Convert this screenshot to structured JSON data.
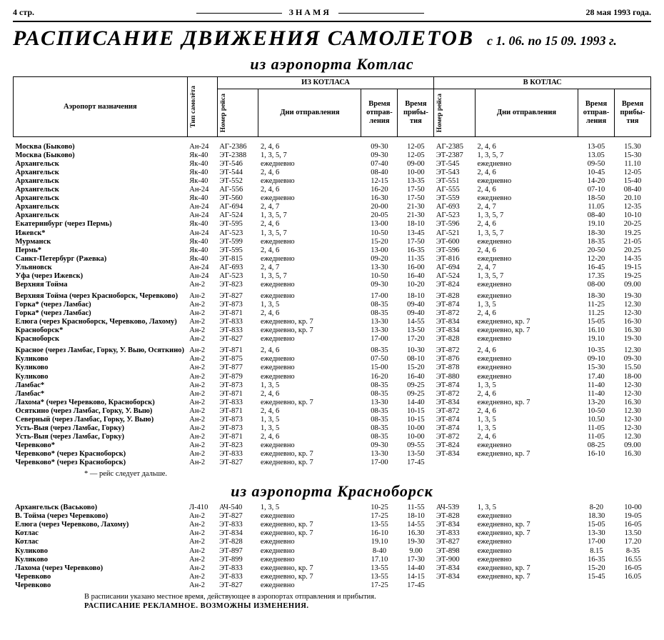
{
  "top": {
    "left": "4 стр.",
    "center": "ЗНАМЯ",
    "right": "28 мая 1993 года."
  },
  "mast": {
    "title": "РАСПИСАНИЕ ДВИЖЕНИЯ САМОЛЕТОВ",
    "period": "с 1. 06. по 15 09. 1993 г."
  },
  "sections": {
    "kotlas_title": "из аэропорта Котлас",
    "krasnoborsk_title": "из аэропорта Красноборск"
  },
  "headers": {
    "dest": "Аэропорт назначения",
    "plane": "Тип самолёта",
    "out_block": "ИЗ КОТЛАСА",
    "in_block": "В КОТЛАС",
    "fno": "Номер рейса",
    "days": "Дни отправления",
    "dep": "Время отправ-ления",
    "arr": "Время прибы-тия"
  },
  "kotlas_rows": [
    [
      "Москва (Быково)",
      "Ан-24",
      "АГ-2386",
      "2, 4, 6",
      "09-30",
      "12-05",
      "АГ-2385",
      "2, 4, 6",
      "13-05",
      "15.30"
    ],
    [
      "Москва (Быково)",
      "Як-40",
      "ЭТ-2388",
      "1, 3, 5, 7",
      "09-30",
      "12-05",
      "ЭТ-2387",
      "1, 3, 5, 7",
      "13.05",
      "15-30"
    ],
    [
      "Архангельск",
      "Як-40",
      "ЭТ-546",
      "ежедневно",
      "07-40",
      "09-00",
      "ЭТ-545",
      "ежедневно",
      "09-50",
      "11.10"
    ],
    [
      "Архангельск",
      "Як-40",
      "ЭТ-544",
      "2, 4, 6",
      "08-40",
      "10-00",
      "ЭТ-543",
      "2, 4, 6",
      "10-45",
      "12-05"
    ],
    [
      "Архангельск",
      "Як-40",
      "ЭТ-552",
      "ежедневно",
      "12-15",
      "13-35",
      "ЭТ-551",
      "ежедневно",
      "14-20",
      "15-40"
    ],
    [
      "Архангельск",
      "Ан-24",
      "АГ-556",
      "2, 4, 6",
      "16-20",
      "17-50",
      "АГ-555",
      "2, 4, 6",
      "07-10",
      "08-40"
    ],
    [
      "Архангельск",
      "Як-40",
      "ЭТ-560",
      "ежедневно",
      "16-30",
      "17-50",
      "ЭТ-559",
      "ежедневно",
      "18-50",
      "20.10"
    ],
    [
      "Архангельск",
      "Ан-24",
      "АГ-694",
      "2, 4, 7",
      "20-00",
      "21-30",
      "АГ-693",
      "2, 4, 7",
      "11.05",
      "12-35"
    ],
    [
      "Архангельск",
      "Ан-24",
      "АГ-524",
      "1, 3, 5, 7",
      "20-05",
      "21-30",
      "АГ-523",
      "1, 3, 5, 7",
      "08-40",
      "10-10"
    ],
    [
      "Екатеринбург (через Пермь)",
      "Як-40",
      "ЭТ-595",
      "2, 4, 6",
      "13-00",
      "18-10",
      "ЭТ-596",
      "2, 4, 6",
      "19.10",
      "20-25"
    ],
    [
      "Ижевск*",
      "Ан-24",
      "АГ-523",
      "1, 3, 5, 7",
      "10-50",
      "13-45",
      "АГ-521",
      "1, 3, 5, 7",
      "18-30",
      "19.25"
    ],
    [
      "Мурманск",
      "Як-40",
      "ЭТ-599",
      "ежедневно",
      "15-20",
      "17-50",
      "ЭТ-600",
      "ежедневно",
      "18-35",
      "21-05"
    ],
    [
      "Пермь*",
      "Як-40",
      "ЭТ-595",
      "2, 4, 6",
      "13-00",
      "16-35",
      "ЭТ-596",
      "2, 4, 6",
      "20-50",
      "20.25"
    ],
    [
      "Санкт-Петербург (Ржевка)",
      "Як-40",
      "ЭТ-815",
      "ежедневно",
      "09-20",
      "11-35",
      "ЭТ-816",
      "ежедневно",
      "12-20",
      "14-35"
    ],
    [
      "Ульяновск",
      "Ан-24",
      "АГ-693",
      "2, 4, 7",
      "13-30",
      "16-00",
      "АГ-694",
      "2, 4, 7",
      "16-45",
      "19-15"
    ],
    [
      "Уфа (через Ижевск)",
      "Ан-24",
      "АГ-523",
      "1, 3, 5, 7",
      "10-50",
      "16-40",
      "АГ-524",
      "1, 3, 5, 7",
      "17.35",
      "19-25"
    ],
    [
      "Верхняя Тойма",
      "Ан-2",
      "ЭТ-823",
      "ежедневно",
      "09-30",
      "10-20",
      "ЭТ-824",
      "ежедневно",
      "08-00",
      "09.00"
    ],
    [
      "_GAP_"
    ],
    [
      "Верхняя Тойма (через Красноборск, Черевково)",
      "Ан-2",
      "ЭТ-827",
      "ежедневно",
      "17-00",
      "18-10",
      "ЭТ-828",
      "ежедневно",
      "18-30",
      "19-30"
    ],
    [
      "Горка* (через Ламбас)",
      "Ан-2",
      "ЭТ-873",
      "1, 3, 5",
      "08-35",
      "09-40",
      "ЭТ-874",
      "1, 3, 5",
      "11-25",
      "12.30"
    ],
    [
      "Горка* (через Ламбас)",
      "Ан-2",
      "ЭТ-871",
      "2, 4, 6",
      "08-35",
      "09-40",
      "ЭТ-872",
      "2, 4, 6",
      "11.25",
      "12-30"
    ],
    [
      "Елюга (через Красноборск, Черевково, Лахому)",
      "Ан-2",
      "ЭТ-833",
      "ежедневно, кр. 7",
      "13-30",
      "14-55",
      "ЭТ-834",
      "ежедневно, кр. 7",
      "15-05",
      "16-30"
    ],
    [
      "Красноборск*",
      "Ан-2",
      "ЭТ-833",
      "ежедневно, кр. 7",
      "13-30",
      "13-50",
      "ЭТ-834",
      "ежедневно, кр. 7",
      "16.10",
      "16.30"
    ],
    [
      "Красноборск",
      "Ан-2",
      "ЭТ-827",
      "ежедневно",
      "17-00",
      "17-20",
      "ЭТ-828",
      "ежедневно",
      "19.10",
      "19-30"
    ],
    [
      "_GAP_"
    ],
    [
      "Красное (через Ламбас, Горку, У. Выю, Осяткино)",
      "Ан-2",
      "ЭТ-871",
      "2, 4, 6",
      "08-35",
      "10-30",
      "ЭТ-872",
      "2, 4, 6",
      "10-35",
      "12.30"
    ],
    [
      "Куликово",
      "Ан-2",
      "ЭТ-875",
      "ежедневно",
      "07-50",
      "08-10",
      "ЭТ-876",
      "ежедневно",
      "09-10",
      "09-30"
    ],
    [
      "Куликово",
      "Ан-2",
      "ЭТ-877",
      "ежедневно",
      "15-00",
      "15-20",
      "ЭТ-878",
      "ежедневно",
      "15-30",
      "15.50"
    ],
    [
      "Куликово",
      "Ан-2",
      "ЭТ-879",
      "ежедневно",
      "16-20",
      "16-40",
      "ЭТ-880",
      "ежедневно",
      "17.40",
      "18-00"
    ],
    [
      "Ламбас*",
      "Ан-2",
      "ЭТ-873",
      "1, 3, 5",
      "08-35",
      "09-25",
      "ЭТ-874",
      "1, 3, 5",
      "11-40",
      "12-30"
    ],
    [
      "Ламбас*",
      "Ан-2",
      "ЭТ-871",
      "2, 4, 6",
      "08-35",
      "09-25",
      "ЭТ-872",
      "2, 4, 6",
      "11-40",
      "12-30"
    ],
    [
      "Лахома* (через Черевково, Красноборск)",
      "Ан-2",
      "ЭТ-833",
      "ежедневно, кр. 7",
      "13-30",
      "14-40",
      "ЭТ-834",
      "ежедневно, кр. 7",
      "13-20",
      "16.30"
    ],
    [
      "Осяткино (через Ламбас, Горку, У. Выю)",
      "Ан-2",
      "ЭТ-871",
      "2, 4, 6",
      "08-35",
      "10-15",
      "ЭТ-872",
      "2, 4, 6",
      "10-50",
      "12.30"
    ],
    [
      "Северный (через Ламбас, Горку, У. Выю)",
      "Ан-2",
      "ЭТ-873",
      "1, 3, 5",
      "08-35",
      "10-15",
      "ЭТ-874",
      "1, 3, 5",
      "10.50",
      "12-30"
    ],
    [
      "Усть-Выя (через Ламбас, Горку)",
      "Ан-2",
      "ЭТ-873",
      "1, 3, 5",
      "08-35",
      "10-00",
      "ЭТ-874",
      "1, 3, 5",
      "11-05",
      "12-30"
    ],
    [
      "Усть-Выя (через Ламбас, Горку)",
      "Ан-2",
      "ЭТ-871",
      "2, 4, 6",
      "08-35",
      "10-00",
      "ЭТ-872",
      "2, 4, 6",
      "11-05",
      "12.30"
    ],
    [
      "Черевково*",
      "Ан-2",
      "ЭТ-823",
      "ежедневно",
      "09-30",
      "09-55",
      "ЭТ-824",
      "ежедневно",
      "08-25",
      "09.00"
    ],
    [
      "Черевково* (через Красноборск)",
      "Ан-2",
      "ЭТ-833",
      "ежедневно, кр. 7",
      "13-30",
      "13-50",
      "ЭТ-834",
      "ежедневно, кр. 7",
      "16-10",
      "16.30"
    ],
    [
      "Черевково* (через Красноборск)",
      "Ан-2",
      "ЭТ-827",
      "ежедневно, кр. 7",
      "17-00",
      "17-45",
      "",
      "",
      "",
      ""
    ]
  ],
  "krasnoborsk_rows": [
    [
      "Архангельск (Васьково)",
      "Л-410",
      "АЧ-540",
      "1, 3, 5",
      "10-25",
      "11-55",
      "АЧ-539",
      "1, 3, 5",
      "8-20",
      "10-00"
    ],
    [
      "В. Тойма (через Черевково)",
      "Ан-2",
      "ЭТ-827",
      "ежедневно",
      "17-25",
      "18-10",
      "ЭТ-828",
      "ежедневно",
      "18.30",
      "19-05"
    ],
    [
      "Елюга (через Черевково, Лахому)",
      "Ан-2",
      "ЭТ-833",
      "ежедневно, кр. 7",
      "13-55",
      "14-55",
      "ЭТ-834",
      "ежедневно, кр. 7",
      "15-05",
      "16-05"
    ],
    [
      "Котлас",
      "Ан-2",
      "ЭТ-834",
      "ежедневно, кр. 7",
      "16-10",
      "16.30",
      "ЭТ-833",
      "ежедневно, кр. 7",
      "13-30",
      "13.50"
    ],
    [
      "Котлас",
      "Ан-2",
      "ЭТ-828",
      "ежедневно",
      "19.10",
      "19-30",
      "ЭТ-827",
      "ежедневно",
      "17-00",
      "17.20"
    ],
    [
      "Куликово",
      "Ан-2",
      "ЭТ-897",
      "ежедневно",
      "8-40",
      "9.00",
      "ЭТ-898",
      "ежедневно",
      "8.15",
      "8-35"
    ],
    [
      "Куликово",
      "Ан-2",
      "ЭТ-899",
      "ежедневно",
      "17.10",
      "17-30",
      "ЭТ-900",
      "ежедневно",
      "16-35",
      "16.55"
    ],
    [
      "Лахома (через Черевково)",
      "Ан-2",
      "ЭТ-833",
      "ежедневно, кр. 7",
      "13-55",
      "14-40",
      "ЭТ-834",
      "ежедневно, кр. 7",
      "15-20",
      "16-05"
    ],
    [
      "Черевково",
      "Ан-2",
      "ЭТ-833",
      "ежедневно, кр. 7",
      "13-55",
      "14-15",
      "ЭТ-834",
      "ежедневно, кр. 7",
      "15-45",
      "16.05"
    ],
    [
      "Черевково",
      "Ан-2",
      "ЭТ-827",
      "ежедневно",
      "17-25",
      "17-45",
      "",
      "",
      "",
      ""
    ]
  ],
  "footnotes": {
    "star": "* — рейс следует дальше.",
    "n1": "В расписании указано местное время, действующее в аэропортах отправления и прибытия.",
    "n2": "РАСПИСАНИЕ РЕКЛАМНОЕ. ВОЗМОЖНЫ ИЗМЕНЕНИЯ."
  },
  "style": {
    "colwidths": [
      "220px",
      "38px",
      "52px",
      "130px",
      "46px",
      "46px",
      "52px",
      "130px",
      "46px",
      "46px"
    ]
  }
}
